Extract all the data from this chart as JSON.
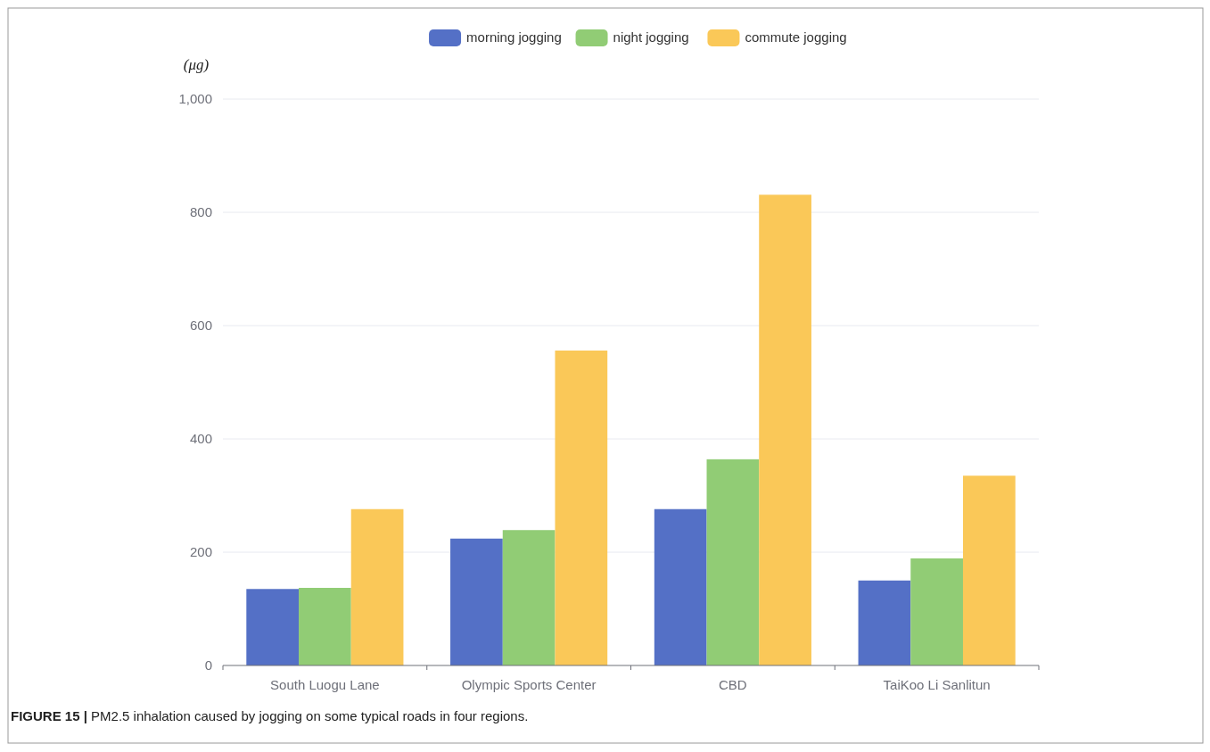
{
  "chart_data": {
    "type": "bar",
    "ylabel": "(μg)",
    "categories": [
      "South Luogu Lane",
      "Olympic Sports Center",
      "CBD",
      "TaiKoo Li Sanlitun"
    ],
    "series": [
      {
        "name": "morning jogging",
        "color": "#5470c6",
        "values": [
          135,
          224,
          276,
          150
        ]
      },
      {
        "name": "night jogging",
        "color": "#91cc75",
        "values": [
          137,
          239,
          364,
          189
        ]
      },
      {
        "name": "commute jogging",
        "color": "#fac858",
        "values": [
          276,
          556,
          831,
          335
        ]
      }
    ],
    "ylim": [
      0,
      1000
    ],
    "yticks": [
      0,
      200,
      400,
      600,
      800,
      {
        "value": 1000,
        "label": "1,000"
      }
    ],
    "grid": "y",
    "legend": "top",
    "annotations": [
      "FIGURE 15 | PM2.5 inhalation caused by jogging on some typical roads in four regions."
    ]
  }
}
